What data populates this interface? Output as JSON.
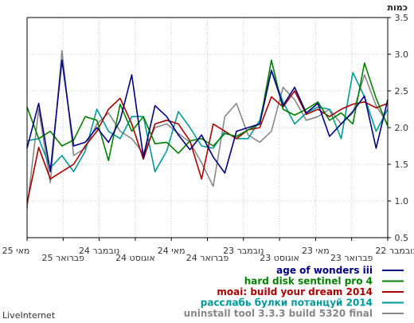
{
  "chart_data": {
    "type": "line",
    "ylabel": "כמות",
    "ylim": [
      0.5,
      3.5
    ],
    "yticks": [
      "3.5",
      "3.0",
      "2.5",
      "2.0",
      "1.5",
      "1.0",
      "0.5"
    ],
    "x_labels": [
      "מאי 25",
      "פברואר 25",
      "נובמבר 24",
      "אוגוסט 24",
      "מאי 24",
      "פברואר 24",
      "נובמבר 23",
      "אוגוסט 23",
      "מאי 23",
      "פברואר 23",
      "נובמבר 22"
    ],
    "grid": true,
    "legend_position": "bottom-right",
    "series": [
      {
        "name": "age of wonders iii",
        "color": "#000080",
        "values": [
          1.72,
          2.33,
          1.4,
          2.92,
          1.75,
          1.8,
          2.0,
          1.8,
          2.1,
          2.72,
          1.6,
          2.3,
          2.15,
          1.9,
          1.7,
          1.9,
          1.6,
          1.38,
          1.95,
          2.0,
          2.05,
          2.78,
          2.3,
          2.55,
          2.2,
          2.33,
          1.88,
          2.05,
          2.22,
          2.43,
          1.72,
          2.38
        ]
      },
      {
        "name": "hard disk sentinel pro 4",
        "color": "#008000",
        "values": [
          2.28,
          1.85,
          1.95,
          1.75,
          1.83,
          2.15,
          2.1,
          1.55,
          2.32,
          1.95,
          2.15,
          1.78,
          1.8,
          1.65,
          1.82,
          1.85,
          1.75,
          1.92,
          1.88,
          1.97,
          2.05,
          2.92,
          2.25,
          2.17,
          2.25,
          2.35,
          2.1,
          2.2,
          2.05,
          2.88,
          2.4,
          2.02
        ]
      },
      {
        "name": "moai: build your dream 2014",
        "color": "#aa0000",
        "values": [
          0.97,
          1.73,
          1.3,
          1.4,
          1.5,
          1.75,
          1.95,
          2.25,
          2.4,
          2.05,
          1.57,
          2.05,
          2.1,
          2.05,
          1.82,
          1.3,
          2.05,
          1.95,
          1.85,
          1.97,
          2.0,
          2.42,
          2.28,
          2.5,
          2.18,
          2.25,
          2.15,
          2.25,
          2.32,
          2.35,
          2.27,
          2.33
        ]
      },
      {
        "name": "расслабь булки потанцуй 2014",
        "color": "#009999",
        "values": [
          1.82,
          1.85,
          1.45,
          1.62,
          1.4,
          1.68,
          2.25,
          1.95,
          1.85,
          2.15,
          2.15,
          1.4,
          1.68,
          2.22,
          2.0,
          1.75,
          1.72,
          1.95,
          1.85,
          1.85,
          2.1,
          2.78,
          2.35,
          2.05,
          2.2,
          2.28,
          2.25,
          1.85,
          2.75,
          2.42,
          1.95,
          2.25
        ]
      },
      {
        "name": "uninstall tool 3.3.3 build 5320 final",
        "color": "#888888",
        "values": [
          0.9,
          2.25,
          1.25,
          3.05,
          1.62,
          1.72,
          2.05,
          2.2,
          1.95,
          1.85,
          1.65,
          2.0,
          2.05,
          1.92,
          1.8,
          1.52,
          1.2,
          2.15,
          2.33,
          1.9,
          1.8,
          1.95,
          2.55,
          2.38,
          2.1,
          2.15,
          2.25,
          2.05,
          2.2,
          2.72,
          2.3,
          2.05
        ]
      }
    ]
  },
  "footer": {
    "brand": "LiveInternet"
  }
}
